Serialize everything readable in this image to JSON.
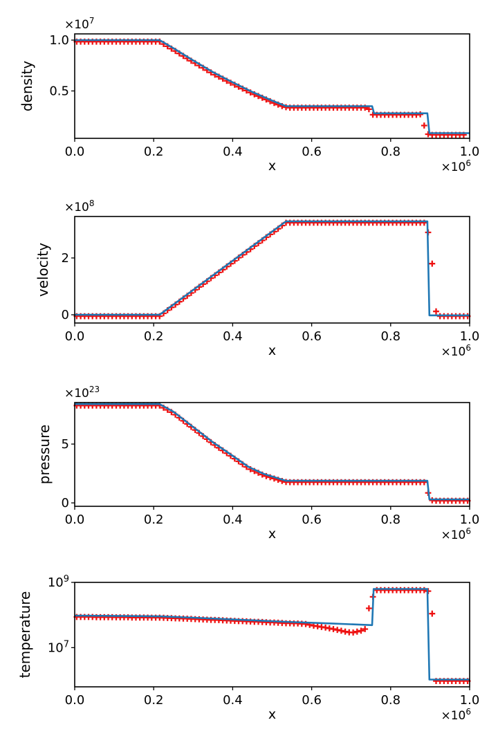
{
  "figure": {
    "background": "#ffffff",
    "line_color": "#1f77b4",
    "marker_color": "#ee1111",
    "axis_color": "#000000"
  },
  "chart_data": [
    {
      "type": "line",
      "ylabel": "density",
      "xlabel": "x",
      "y_axis": "linear",
      "y_offset_exponent": "7",
      "x_offset_exponent": "6",
      "xlim": [
        0.0,
        1.0
      ],
      "ylim": [
        0.034,
        1.061
      ],
      "xticks": [
        {
          "v": 0.0,
          "label": "0.0"
        },
        {
          "v": 0.2,
          "label": "0.2"
        },
        {
          "v": 0.4,
          "label": "0.4"
        },
        {
          "v": 0.6,
          "label": "0.6"
        },
        {
          "v": 0.8,
          "label": "0.8"
        },
        {
          "v": 1.0,
          "label": "1.0"
        }
      ],
      "yticks": [
        {
          "v": 1.0,
          "label": "1.0"
        },
        {
          "v": 0.5,
          "label": "0.5"
        }
      ],
      "series": [
        {
          "name": "analytic-line",
          "style": "line",
          "points": [
            [
              0,
              1.0
            ],
            [
              0.215,
              1.0
            ],
            [
              0.25,
              0.92
            ],
            [
              0.3,
              0.8
            ],
            [
              0.35,
              0.685
            ],
            [
              0.4,
              0.585
            ],
            [
              0.45,
              0.49
            ],
            [
              0.5,
              0.405
            ],
            [
              0.535,
              0.35
            ],
            [
              0.753,
              0.35
            ],
            [
              0.758,
              0.28
            ],
            [
              0.893,
              0.28
            ],
            [
              0.898,
              0.085
            ],
            [
              1.0,
              0.085
            ]
          ]
        },
        {
          "name": "numerical-markers",
          "style": "plus",
          "x0": 0.005,
          "dx": 0.01,
          "values": [
            0.985,
            0.985,
            0.985,
            0.985,
            0.985,
            0.985,
            0.985,
            0.985,
            0.985,
            0.985,
            0.985,
            0.985,
            0.985,
            0.985,
            0.985,
            0.985,
            0.985,
            0.985,
            0.985,
            0.985,
            0.985,
            0.985,
            0.962,
            0.939,
            0.916,
            0.893,
            0.869,
            0.845,
            0.821,
            0.797,
            0.774,
            0.751,
            0.728,
            0.705,
            0.682,
            0.66,
            0.64,
            0.62,
            0.6,
            0.58,
            0.561,
            0.542,
            0.523,
            0.504,
            0.485,
            0.467,
            0.45,
            0.433,
            0.416,
            0.399,
            0.382,
            0.366,
            0.351,
            0.34,
            0.335,
            0.335,
            0.335,
            0.335,
            0.335,
            0.335,
            0.335,
            0.335,
            0.335,
            0.335,
            0.335,
            0.335,
            0.335,
            0.335,
            0.335,
            0.335,
            0.335,
            0.335,
            0.335,
            0.335,
            0.32,
            0.266,
            0.265,
            0.265,
            0.265,
            0.265,
            0.265,
            0.265,
            0.265,
            0.265,
            0.265,
            0.265,
            0.265,
            0.27,
            0.16,
            0.075,
            0.068,
            0.068,
            0.068,
            0.068,
            0.068,
            0.068,
            0.068,
            0.068,
            0.068
          ]
        }
      ]
    },
    {
      "type": "line",
      "ylabel": "velocity",
      "xlabel": "x",
      "y_axis": "linear",
      "y_offset_exponent": "8",
      "x_offset_exponent": "6",
      "xlim": [
        0.0,
        1.0
      ],
      "ylim": [
        -0.29,
        3.46
      ],
      "xticks": [
        {
          "v": 0.0,
          "label": "0.0"
        },
        {
          "v": 0.2,
          "label": "0.2"
        },
        {
          "v": 0.4,
          "label": "0.4"
        },
        {
          "v": 0.6,
          "label": "0.6"
        },
        {
          "v": 0.8,
          "label": "0.8"
        },
        {
          "v": 1.0,
          "label": "1.0"
        }
      ],
      "yticks": [
        {
          "v": 2,
          "label": "2"
        },
        {
          "v": 0,
          "label": "0"
        }
      ],
      "series": [
        {
          "name": "analytic-line",
          "style": "line",
          "points": [
            [
              0,
              0
            ],
            [
              0.215,
              0
            ],
            [
              0.535,
              3.29
            ],
            [
              0.893,
              3.29
            ],
            [
              0.898,
              -0.02
            ],
            [
              1.0,
              -0.02
            ]
          ]
        },
        {
          "name": "numerical-markers",
          "style": "plus",
          "x0": 0.005,
          "dx": 0.01,
          "values": [
            -0.05,
            -0.05,
            -0.05,
            -0.05,
            -0.05,
            -0.05,
            -0.05,
            -0.05,
            -0.05,
            -0.05,
            -0.05,
            -0.05,
            -0.05,
            -0.05,
            -0.05,
            -0.05,
            -0.05,
            -0.05,
            -0.05,
            -0.05,
            -0.05,
            -0.05,
            0.05,
            0.16,
            0.26,
            0.36,
            0.46,
            0.57,
            0.67,
            0.77,
            0.88,
            0.98,
            1.08,
            1.18,
            1.29,
            1.39,
            1.49,
            1.59,
            1.7,
            1.8,
            1.9,
            2.01,
            2.11,
            2.21,
            2.31,
            2.42,
            2.52,
            2.62,
            2.73,
            2.83,
            2.93,
            3.03,
            3.14,
            3.24,
            3.24,
            3.24,
            3.24,
            3.24,
            3.24,
            3.24,
            3.24,
            3.24,
            3.24,
            3.24,
            3.24,
            3.24,
            3.24,
            3.24,
            3.24,
            3.24,
            3.24,
            3.24,
            3.24,
            3.24,
            3.24,
            3.24,
            3.24,
            3.24,
            3.24,
            3.24,
            3.24,
            3.24,
            3.24,
            3.24,
            3.24,
            3.24,
            3.24,
            3.24,
            3.24,
            2.9,
            1.8,
            0.12,
            -0.05,
            -0.05,
            -0.05,
            -0.05,
            -0.05,
            -0.05,
            -0.05,
            -0.05
          ]
        }
      ]
    },
    {
      "type": "line",
      "ylabel": "pressure",
      "xlabel": "x",
      "y_axis": "linear",
      "y_offset_exponent": "23",
      "x_offset_exponent": "6",
      "xlim": [
        0.0,
        1.0
      ],
      "ylim": [
        -0.29,
        8.53
      ],
      "xticks": [
        {
          "v": 0.0,
          "label": "0.0"
        },
        {
          "v": 0.2,
          "label": "0.2"
        },
        {
          "v": 0.4,
          "label": "0.4"
        },
        {
          "v": 0.6,
          "label": "0.6"
        },
        {
          "v": 0.8,
          "label": "0.8"
        },
        {
          "v": 1.0,
          "label": "1.0"
        }
      ],
      "yticks": [
        {
          "v": 5,
          "label": "5"
        },
        {
          "v": 0,
          "label": "0"
        }
      ],
      "series": [
        {
          "name": "analytic-line",
          "style": "line",
          "points": [
            [
              0,
              8.4
            ],
            [
              0.215,
              8.4
            ],
            [
              0.25,
              7.75
            ],
            [
              0.3,
              6.45
            ],
            [
              0.35,
              5.15
            ],
            [
              0.4,
              4.0
            ],
            [
              0.44,
              3.06
            ],
            [
              0.48,
              2.45
            ],
            [
              0.535,
              1.88
            ],
            [
              0.893,
              1.88
            ],
            [
              0.898,
              0.3
            ],
            [
              1.0,
              0.3
            ]
          ]
        },
        {
          "name": "numerical-markers",
          "style": "plus",
          "x0": 0.005,
          "dx": 0.01,
          "values": [
            8.28,
            8.28,
            8.28,
            8.28,
            8.28,
            8.28,
            8.28,
            8.28,
            8.28,
            8.28,
            8.28,
            8.28,
            8.28,
            8.28,
            8.28,
            8.28,
            8.28,
            8.28,
            8.28,
            8.28,
            8.28,
            8.28,
            8.09,
            7.91,
            7.72,
            7.5,
            7.24,
            6.98,
            6.72,
            6.46,
            6.2,
            5.94,
            5.68,
            5.42,
            5.16,
            4.92,
            4.69,
            4.46,
            4.23,
            4.0,
            3.76,
            3.53,
            3.29,
            3.06,
            2.86,
            2.71,
            2.56,
            2.41,
            2.28,
            2.18,
            2.07,
            1.97,
            1.86,
            1.78,
            1.76,
            1.76,
            1.76,
            1.76,
            1.76,
            1.76,
            1.76,
            1.76,
            1.76,
            1.76,
            1.76,
            1.76,
            1.76,
            1.76,
            1.76,
            1.76,
            1.76,
            1.76,
            1.76,
            1.76,
            1.76,
            1.76,
            1.76,
            1.76,
            1.76,
            1.76,
            1.76,
            1.76,
            1.76,
            1.76,
            1.76,
            1.76,
            1.76,
            1.76,
            1.76,
            0.85,
            0.22,
            0.18,
            0.18,
            0.18,
            0.18,
            0.18,
            0.18,
            0.18,
            0.18,
            0.18
          ]
        }
      ]
    },
    {
      "type": "line",
      "ylabel": "temperature",
      "xlabel": "x",
      "y_axis": "log",
      "y_unit_multiplier": 10000000.0,
      "y_offset_exponent": null,
      "x_offset_exponent": "6",
      "xlim": [
        0.0,
        1.0
      ],
      "ylim": [
        0.063,
        100
      ],
      "xticks": [
        {
          "v": 0.0,
          "label": "0.0"
        },
        {
          "v": 0.2,
          "label": "0.2"
        },
        {
          "v": 0.4,
          "label": "0.4"
        },
        {
          "v": 0.6,
          "label": "0.6"
        },
        {
          "v": 0.8,
          "label": "0.8"
        },
        {
          "v": 1.0,
          "label": "1.0"
        }
      ],
      "yticks": [
        {
          "v": 100,
          "label_base": "10",
          "label_exp": "9"
        },
        {
          "v": 1,
          "label_base": "10",
          "label_exp": "7"
        }
      ],
      "series": [
        {
          "name": "analytic-line",
          "style": "line",
          "points": [
            [
              0,
              9.6
            ],
            [
              0.1,
              9.4
            ],
            [
              0.215,
              9.1
            ],
            [
              0.3,
              8.3
            ],
            [
              0.4,
              7.3
            ],
            [
              0.535,
              6.2
            ],
            [
              0.65,
              5.5
            ],
            [
              0.753,
              4.9
            ],
            [
              0.757,
              63
            ],
            [
              0.893,
              63
            ],
            [
              0.898,
              0.105
            ],
            [
              1.0,
              0.105
            ]
          ]
        },
        {
          "name": "numerical-markers",
          "style": "plus",
          "x0": 0.005,
          "dx": 0.01,
          "values": [
            8.7,
            8.7,
            8.7,
            8.7,
            8.7,
            8.6,
            8.6,
            8.6,
            8.6,
            8.6,
            8.5,
            8.5,
            8.5,
            8.5,
            8.4,
            8.4,
            8.4,
            8.4,
            8.35,
            8.3,
            8.3,
            8.3,
            8.2,
            8.1,
            8.0,
            7.9,
            7.85,
            7.8,
            7.7,
            7.6,
            7.5,
            7.4,
            7.3,
            7.2,
            7.1,
            7.05,
            7.0,
            6.9,
            6.8,
            6.7,
            6.6,
            6.5,
            6.5,
            6.4,
            6.3,
            6.2,
            6.2,
            6.1,
            6.0,
            5.9,
            5.9,
            5.8,
            5.7,
            5.6,
            5.6,
            5.5,
            5.5,
            5.4,
            5.3,
            5.0,
            4.7,
            4.5,
            4.3,
            4.1,
            3.9,
            3.7,
            3.5,
            3.3,
            3.1,
            2.95,
            2.9,
            3.1,
            3.3,
            3.7,
            16,
            36,
            58,
            58,
            58,
            58,
            58,
            58,
            58,
            58,
            58,
            58,
            58,
            58,
            58,
            54,
            11,
            0.095,
            0.095,
            0.095,
            0.095,
            0.095,
            0.095,
            0.095,
            0.095,
            0.095
          ]
        }
      ]
    }
  ]
}
